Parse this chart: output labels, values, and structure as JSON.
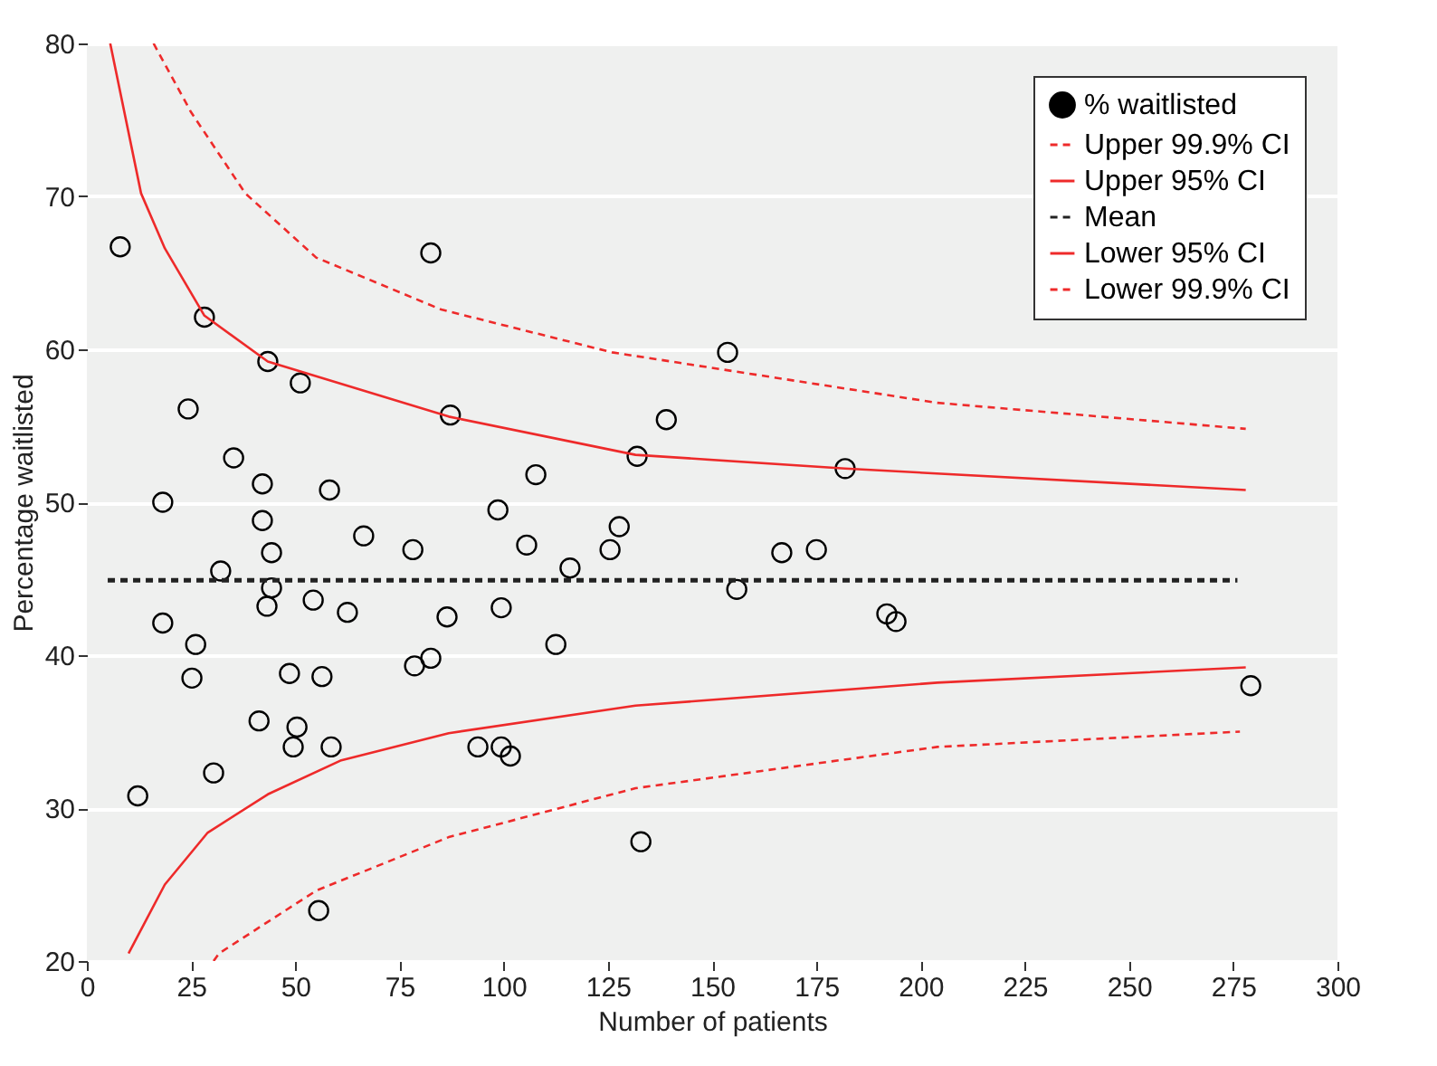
{
  "chart_data": {
    "type": "scatter",
    "xlabel": "Number of patients",
    "ylabel": "Percentage waitlisted",
    "xlim": [
      0,
      300
    ],
    "ylim": [
      20,
      80
    ],
    "xticks": [
      0,
      25,
      50,
      75,
      100,
      125,
      150,
      175,
      200,
      225,
      250,
      275,
      300
    ],
    "yticks": [
      20,
      30,
      40,
      50,
      60,
      70,
      80
    ],
    "grid": "y",
    "legend": "top right",
    "series": [
      {
        "name": "% waitlisted",
        "marker": "circle",
        "color": "#000000",
        "x": [
          8,
          82.5,
          28.2,
          43.4,
          51.2,
          24.3,
          35.2,
          42.1,
          18.2,
          58.2,
          42.1,
          66.4,
          44.3,
          32.1,
          78.2,
          43.2,
          44.3,
          54.3,
          62.5,
          18.2,
          26.1,
          25.2,
          48.6,
          56.4,
          41.3,
          50.4,
          49.5,
          58.6,
          30.4,
          12.2,
          55.6,
          78.6,
          82.5,
          87.2,
          153.7,
          139,
          132,
          181.9,
          107.7,
          98.6,
          127.7,
          105.5,
          125.5,
          166.7,
          175,
          115.9,
          155.9,
          86.4,
          99.4,
          191.9,
          194.1,
          112.5,
          93.8,
          99.4,
          101.6,
          132.9,
          279.2
        ],
        "values": [
          66.7,
          66.3,
          62.1,
          59.2,
          57.8,
          56.1,
          52.9,
          51.2,
          50,
          50.8,
          48.8,
          47.8,
          46.7,
          45.5,
          46.9,
          43.2,
          44.4,
          43.6,
          42.8,
          42.1,
          40.7,
          38.5,
          38.8,
          38.6,
          35.7,
          35.3,
          34,
          34,
          32.3,
          30.8,
          23.3,
          39.3,
          39.8,
          55.7,
          59.8,
          55.4,
          53,
          52.2,
          51.8,
          49.5,
          48.4,
          47.2,
          46.9,
          46.7,
          46.9,
          45.7,
          44.3,
          42.5,
          43.1,
          42.7,
          42.2,
          40.7,
          34,
          34,
          33.4,
          27.8,
          38
        ]
      },
      {
        "name": "Upper 99.9% CI",
        "type": "line",
        "line_style": "dashed",
        "color": "#ee2a2a",
        "x": [
          16,
          25,
          38,
          55,
          85,
          126,
          204,
          278
        ],
        "values": [
          80,
          75.5,
          70.2,
          66,
          62.6,
          59.8,
          56.5,
          54.8
        ]
      },
      {
        "name": "Upper 95% CI",
        "type": "line",
        "line_style": "solid",
        "color": "#ee2a2a",
        "x": [
          5.6,
          13,
          18.7,
          28.2,
          43.4,
          86.8,
          131.6,
          181.9,
          278
        ],
        "values": [
          80,
          70.2,
          66.6,
          62.2,
          59.2,
          55.6,
          53.1,
          52.2,
          50.8
        ]
      },
      {
        "name": "Mean",
        "type": "line",
        "line_style": "dashed",
        "color": "#222222",
        "x": [
          5,
          276
        ],
        "values": [
          44.9,
          44.9
        ]
      },
      {
        "name": "Lower 95% CI",
        "type": "line",
        "line_style": "solid",
        "color": "#ee2a2a",
        "x": [
          10,
          18.7,
          29,
          43.4,
          60.8,
          86.8,
          131.6,
          204,
          278
        ],
        "values": [
          20.5,
          25,
          28.4,
          30.9,
          33.1,
          34.9,
          36.7,
          38.2,
          39.2
        ]
      },
      {
        "name": "Lower 99.9% CI",
        "type": "line",
        "line_style": "dashed",
        "color": "#ee2a2a",
        "x": [
          30.4,
          31.7,
          55,
          86.8,
          131.6,
          204,
          276.6
        ],
        "values": [
          20,
          20.5,
          24.6,
          28.1,
          31.3,
          34,
          35
        ]
      }
    ]
  }
}
